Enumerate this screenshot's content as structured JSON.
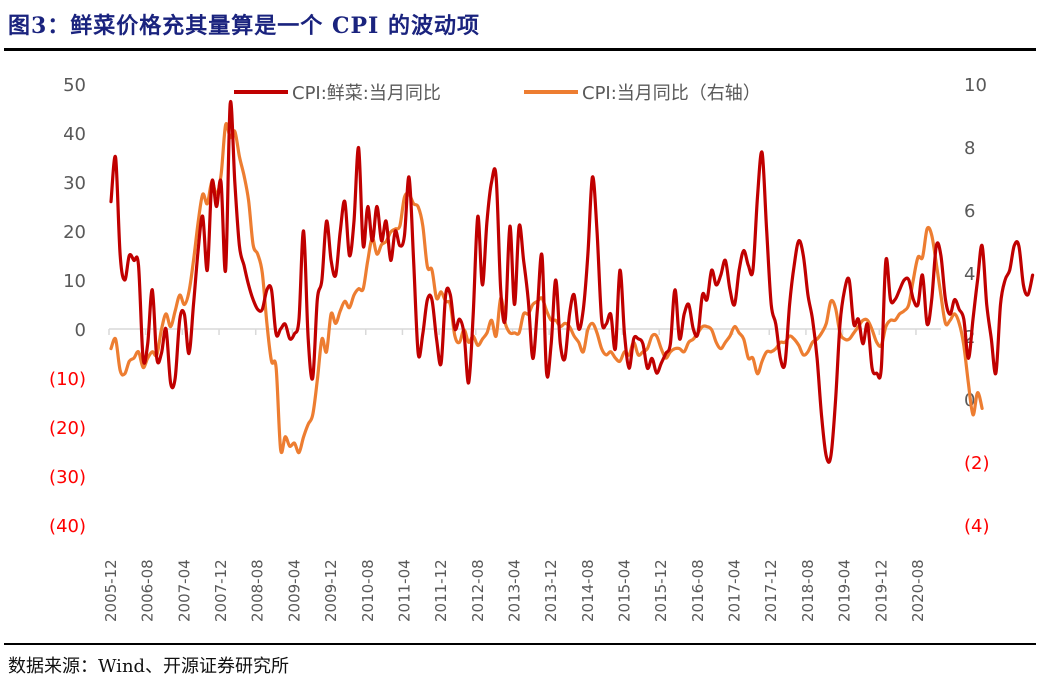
{
  "header": {
    "title": "图3：鲜菜价格充其量算是一个 CPI 的波动项"
  },
  "footer": {
    "source": "数据来源：Wind、开源证券研究所"
  },
  "colors": {
    "title": "#1a237e",
    "series_vegetable": "#c00000",
    "series_cpi": "#ed7d31",
    "negative_tick": "#ff0000",
    "tick": "#595959",
    "baseline": "#d9d9d9"
  },
  "chart_data": {
    "type": "line",
    "title": "",
    "xlabel": "",
    "ylabel": "",
    "y2label": "",
    "ylim": [
      -40,
      50
    ],
    "y2lim": [
      -4,
      10
    ],
    "grid": false,
    "legend_position": "top",
    "left_ticks": [
      {
        "value": 50,
        "label": "50"
      },
      {
        "value": 40,
        "label": "40"
      },
      {
        "value": 30,
        "label": "30"
      },
      {
        "value": 20,
        "label": "20"
      },
      {
        "value": 10,
        "label": "10"
      },
      {
        "value": 0,
        "label": "0"
      },
      {
        "value": -10,
        "label": "(10)"
      },
      {
        "value": -20,
        "label": "(20)"
      },
      {
        "value": -30,
        "label": "(30)"
      },
      {
        "value": -40,
        "label": "(40)"
      }
    ],
    "right_ticks": [
      {
        "value": 10,
        "label": "10"
      },
      {
        "value": 8,
        "label": "8"
      },
      {
        "value": 6,
        "label": "6"
      },
      {
        "value": 4,
        "label": "4"
      },
      {
        "value": 2,
        "label": "2"
      },
      {
        "value": 0,
        "label": "0"
      },
      {
        "value": -2,
        "label": "(2)"
      },
      {
        "value": -4,
        "label": "(4)"
      }
    ],
    "x_start": "2005-12",
    "x_tick_labels": [
      "2005-12",
      "2006-08",
      "2007-04",
      "2007-12",
      "2008-08",
      "2009-04",
      "2009-12",
      "2010-08",
      "2011-04",
      "2011-12",
      "2012-08",
      "2013-04",
      "2013-12",
      "2014-08",
      "2015-04",
      "2015-12",
      "2016-08",
      "2017-04",
      "2017-12",
      "2018-08",
      "2019-04",
      "2019-12",
      "2020-08"
    ],
    "series": [
      {
        "name": "CPI:鲜菜:当月同比",
        "axis": "left",
        "values": [
          26,
          35,
          15,
          10,
          15,
          14,
          13,
          -6,
          -3,
          8,
          -6,
          -5,
          0,
          -11,
          -10,
          2,
          3,
          -5,
          5,
          16,
          23,
          12,
          30,
          25,
          30,
          12,
          46,
          30,
          17,
          13,
          9,
          6,
          4,
          4,
          8,
          8,
          -1,
          0,
          1,
          -2,
          -1,
          2,
          20,
          -2,
          -10,
          6,
          10,
          22,
          14,
          11,
          20,
          26,
          15,
          22,
          37,
          17,
          25,
          18,
          25,
          18,
          22,
          14,
          20,
          17,
          19,
          31,
          14,
          -5,
          -1,
          6,
          6,
          -2,
          -7,
          7,
          7,
          0,
          2,
          -1,
          -11,
          3,
          23,
          9,
          22,
          30,
          31,
          8,
          2,
          21,
          5,
          21,
          14,
          6,
          -6,
          4,
          15,
          -9,
          -3,
          10,
          -3,
          -6,
          3,
          7,
          0,
          4,
          15,
          31,
          20,
          2,
          1,
          3,
          -4,
          12,
          -1,
          -8,
          -2,
          -2,
          -3,
          -8,
          -6,
          -9,
          -7,
          -5,
          -3,
          8,
          -2,
          3,
          5,
          0,
          -1,
          7,
          6,
          12,
          9,
          11,
          14,
          8,
          5,
          12,
          16,
          13,
          12,
          27,
          36,
          20,
          5,
          1,
          -6,
          -7,
          5,
          13,
          18,
          15,
          7,
          2,
          -6,
          -18,
          -26,
          -26,
          -15,
          1,
          8,
          10,
          1,
          2,
          -3,
          1,
          -8,
          -9,
          -8,
          14,
          6,
          6,
          8,
          10,
          10,
          6,
          5,
          11,
          1,
          6,
          17,
          15,
          6,
          3,
          6,
          4,
          2,
          -6,
          2,
          10,
          17,
          5,
          -2,
          -9,
          5,
          10,
          12,
          17,
          17,
          9,
          7,
          11
        ]
      },
      {
        "name": "CPI:当月同比（右轴）",
        "axis": "right",
        "values": [
          1.6,
          1.9,
          0.9,
          0.8,
          1.2,
          1.3,
          1.5,
          1.0,
          1.3,
          1.5,
          1.4,
          2.2,
          2.7,
          2.3,
          2.8,
          3.3,
          3.0,
          3.4,
          4.4,
          5.6,
          6.5,
          6.2,
          6.9,
          6.5,
          7.1,
          8.7,
          8.3,
          8.5,
          7.7,
          7.1,
          6.3,
          4.9,
          4.6,
          4.0,
          2.4,
          1.2,
          1.0,
          -1.6,
          -1.2,
          -1.5,
          -1.4,
          -1.7,
          -1.2,
          -0.8,
          -0.5,
          0.6,
          1.9,
          1.5,
          2.7,
          2.4,
          2.8,
          3.1,
          2.9,
          3.3,
          3.5,
          3.5,
          4.4,
          5.1,
          4.6,
          4.9,
          5.0,
          5.3,
          5.4,
          5.5,
          6.4,
          6.5,
          6.2,
          6.1,
          5.5,
          4.2,
          4.1,
          3.2,
          3.4,
          3.1,
          3.0,
          2.0,
          1.8,
          2.2,
          1.8,
          2.0,
          1.7,
          1.9,
          2.1,
          2.5,
          2.0,
          3.2,
          2.4,
          2.1,
          2.1,
          2.1,
          2.7,
          2.7,
          3.0,
          3.1,
          3.2,
          2.8,
          2.5,
          2.5,
          2.3,
          2.4,
          2.3,
          2.0,
          1.8,
          1.5,
          2.2,
          2.4,
          2.1,
          1.6,
          1.4,
          1.5,
          1.3,
          1.2,
          1.5,
          1.4,
          1.8,
          1.4,
          1.5,
          1.6,
          2.0,
          2.0,
          1.6,
          1.3,
          1.5,
          1.6,
          1.6,
          1.5,
          1.8,
          1.9,
          2.1,
          2.3,
          2.3,
          2.2,
          1.8,
          1.6,
          1.8,
          2.0,
          2.3,
          2.1,
          1.9,
          1.3,
          1.3,
          0.8,
          1.2,
          1.5,
          1.5,
          1.6,
          1.8,
          1.8,
          2.0,
          1.9,
          1.7,
          1.4,
          1.5,
          1.8,
          1.9,
          2.1,
          2.4,
          3.1,
          2.9,
          2.1,
          1.9,
          1.9,
          2.1,
          2.3,
          2.5,
          2.5,
          2.2,
          1.8,
          1.7,
          2.3,
          2.5,
          2.5,
          2.7,
          2.8,
          3.0,
          3.8,
          4.5,
          4.5,
          5.4,
          5.2,
          4.3,
          3.3,
          2.4,
          2.5,
          2.7,
          2.4,
          1.7,
          0.5,
          -0.5,
          0.2,
          -0.3
        ]
      }
    ]
  }
}
